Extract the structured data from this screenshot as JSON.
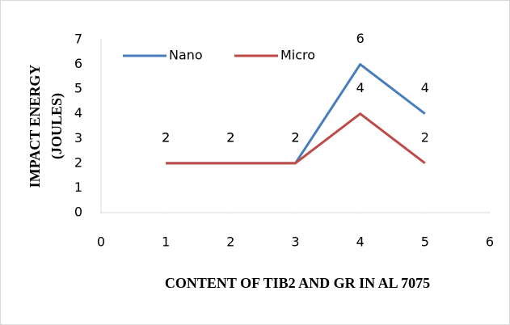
{
  "chart_data": {
    "type": "line",
    "x_label": "CONTENT OF TIB2 AND GR IN AL 7075",
    "y_label": [
      "IMPACT ENERGY",
      "(JOULES)"
    ],
    "x": [
      1,
      2,
      3,
      4,
      5
    ],
    "series": [
      {
        "name": "Nano",
        "color": "#4a7ebb",
        "values": [
          2,
          2,
          2,
          6,
          4
        ]
      },
      {
        "name": "Micro",
        "color": "#be4b48",
        "values": [
          2,
          2,
          2,
          4,
          2
        ]
      }
    ],
    "xlim": [
      0,
      6
    ],
    "xticks": [
      0,
      1,
      2,
      3,
      4,
      5,
      6
    ],
    "ylim": [
      0,
      7
    ],
    "yticks": [
      0,
      1,
      2,
      3,
      4,
      5,
      6,
      7
    ],
    "grid": false,
    "legend": "top-left",
    "data_labels": true
  }
}
